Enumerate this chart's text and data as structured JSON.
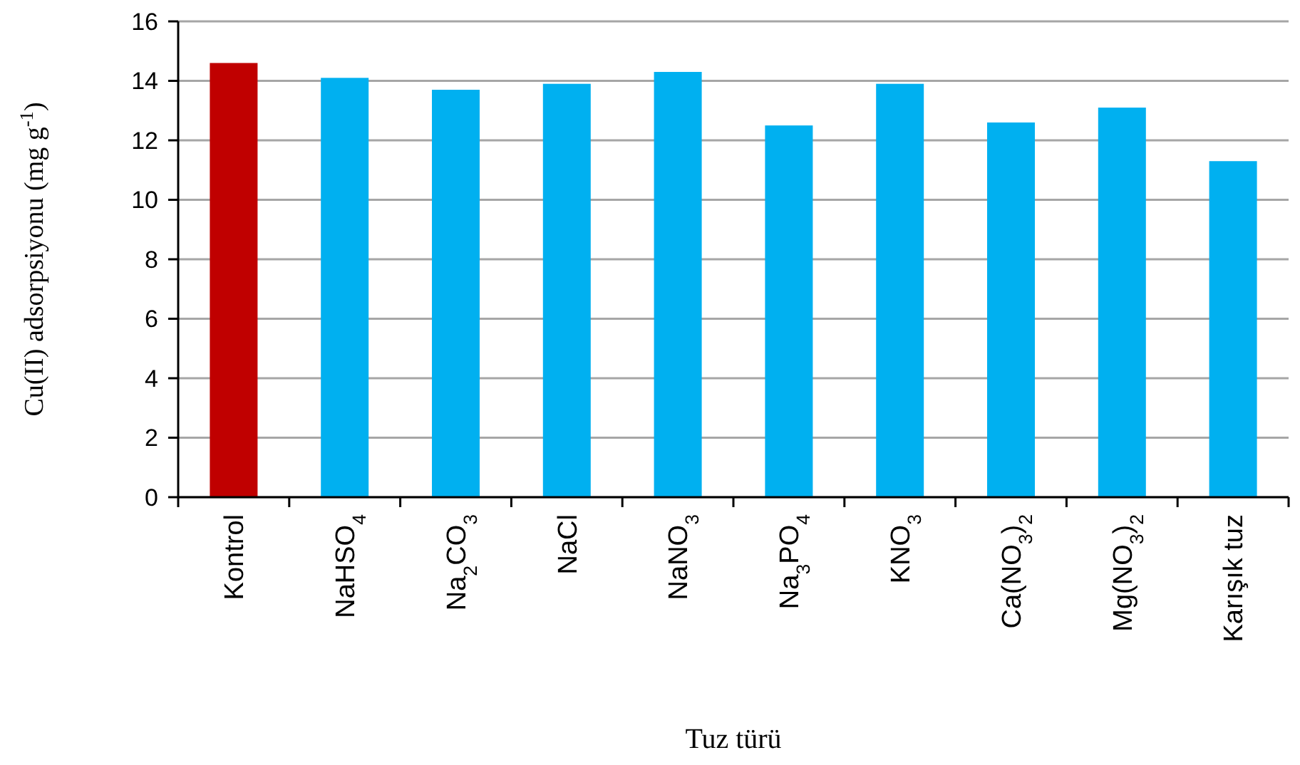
{
  "chart_data": {
    "type": "bar",
    "xlabel": "Tuz türü",
    "ylabel": "Cu(II) adsorpsiyonu (mg g$^{-1}$)",
    "categories": [
      "Kontrol",
      "NaHSO$_{4}$",
      "Na$_{2}$CO$_{3}$",
      "NaCl",
      "NaNO$_{3}$",
      "Na$_{3}$PO$_{4}$",
      "KNO$_{3}$",
      "Ca(NO$_{3}$)$_{2}$",
      "Mg(NO$_{3}$)$_{2}$",
      "Karışık tuz"
    ],
    "values": [
      14.6,
      14.1,
      13.7,
      13.9,
      14.3,
      12.5,
      13.9,
      12.6,
      13.1,
      11.3
    ],
    "colors": [
      "#c00000",
      "#00b0f0",
      "#00b0f0",
      "#00b0f0",
      "#00b0f0",
      "#00b0f0",
      "#00b0f0",
      "#00b0f0",
      "#00b0f0",
      "#00b0f0"
    ],
    "ylim": [
      0,
      16
    ],
    "yticks": [
      0,
      2,
      4,
      6,
      8,
      10,
      12,
      14,
      16
    ],
    "grid": "y"
  }
}
